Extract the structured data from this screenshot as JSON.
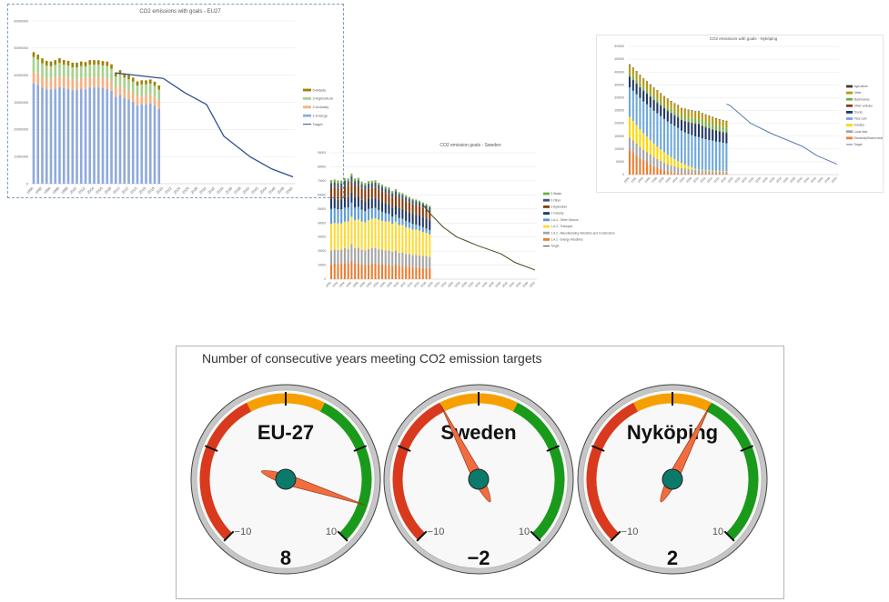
{
  "chart_data": [
    {
      "type": "bar",
      "stacked": true,
      "title": "CO2 emissions with goals - EU27",
      "xlabel": "",
      "ylabel": "",
      "x_range": [
        1990,
        2050
      ],
      "bar_years_start": 1990,
      "ylim": [
        0,
        6000000
      ],
      "ytick_step": 1000000,
      "xtick_step": 2,
      "grid": true,
      "legend": "right",
      "series": [
        {
          "name": "1-Energy",
          "color": "#8faadc",
          "values": [
            3700000,
            3650000,
            3550000,
            3480000,
            3470000,
            3500000,
            3560000,
            3520000,
            3500000,
            3450000,
            3450000,
            3500000,
            3480000,
            3550000,
            3550000,
            3550000,
            3520000,
            3500000,
            3420000,
            3200000,
            3270000,
            3150000,
            3100000,
            3020000,
            2880000,
            2920000,
            2920000,
            2950000,
            2880000,
            2750000
          ]
        },
        {
          "name": "2-Industry",
          "color": "#f4b183",
          "values": [
            420000,
            410000,
            400000,
            390000,
            390000,
            400000,
            400000,
            400000,
            400000,
            390000,
            390000,
            390000,
            390000,
            390000,
            390000,
            390000,
            390000,
            390000,
            380000,
            330000,
            340000,
            340000,
            330000,
            330000,
            330000,
            330000,
            330000,
            330000,
            330000,
            320000
          ]
        },
        {
          "name": "3-Agriculture",
          "color": "#a9d18e",
          "values": [
            550000,
            520000,
            490000,
            480000,
            470000,
            480000,
            490000,
            470000,
            460000,
            450000,
            450000,
            450000,
            450000,
            450000,
            450000,
            450000,
            450000,
            450000,
            440000,
            420000,
            420000,
            420000,
            420000,
            410000,
            410000,
            410000,
            410000,
            410000,
            400000,
            400000
          ]
        },
        {
          "name": "5-Waste",
          "color": "#a08000",
          "values": [
            180000,
            180000,
            180000,
            180000,
            175000,
            175000,
            175000,
            170000,
            170000,
            170000,
            170000,
            165000,
            165000,
            165000,
            165000,
            160000,
            160000,
            160000,
            160000,
            155000,
            155000,
            155000,
            155000,
            150000,
            150000,
            150000,
            150000,
            150000,
            150000,
            150000
          ]
        }
      ],
      "target": {
        "name": "Target",
        "color": "#2f4f8f",
        "points": [
          [
            2009,
            4080000
          ],
          [
            2020,
            3880000
          ],
          [
            2025,
            3350000
          ],
          [
            2030,
            2920000
          ],
          [
            2034,
            1750000
          ],
          [
            2040,
            1000000
          ],
          [
            2045,
            550000
          ],
          [
            2050,
            250000
          ]
        ]
      }
    },
    {
      "type": "bar",
      "stacked": true,
      "title": "CO2 emission goals - Sweden",
      "xlabel": "",
      "ylabel": "",
      "x_range": [
        1990,
        2050
      ],
      "bar_years_start": 1990,
      "ylim": [
        0,
        90000
      ],
      "ytick_step": 10000,
      "xtick_step": 2,
      "grid": true,
      "legend": "right",
      "series": [
        {
          "name": "1.A.1 - Energy Industries",
          "color": "#ed7d31",
          "values": [
            10500,
            11000,
            10800,
            11000,
            11500,
            11000,
            13000,
            11000,
            11500,
            10500,
            10000,
            10500,
            11000,
            11500,
            10500,
            10500,
            10000,
            10000,
            9500,
            10500,
            9500,
            9500,
            9000,
            9000,
            8500,
            8500,
            8500,
            8000,
            8000,
            7800
          ]
        },
        {
          "name": "1.A.2 - Manufacturing Industries and Construction",
          "color": "#a5a5a5",
          "values": [
            10000,
            10000,
            10000,
            10200,
            10500,
            10500,
            12000,
            11000,
            11000,
            10500,
            10500,
            11000,
            11000,
            10800,
            10800,
            10500,
            10500,
            10500,
            10000,
            10000,
            9000,
            9500,
            9000,
            9000,
            8800,
            8800,
            8500,
            8500,
            8500,
            8200
          ]
        },
        {
          "name": "1.A.3 - Transport",
          "color": "#ffd932",
          "values": [
            19000,
            19000,
            19000,
            18500,
            19000,
            19500,
            19500,
            20000,
            20000,
            20000,
            20000,
            20500,
            21000,
            21000,
            21000,
            20500,
            20500,
            20500,
            20000,
            20500,
            20000,
            19500,
            19000,
            18500,
            18000,
            18000,
            17500,
            17000,
            16500,
            16000
          ]
        },
        {
          "name": "1.A.4 - Other Sectors",
          "color": "#5b9bd5",
          "values": [
            10500,
            10500,
            10000,
            10000,
            10000,
            10000,
            10000,
            9000,
            9000,
            8500,
            8000,
            8000,
            7500,
            7500,
            7000,
            6500,
            6000,
            5500,
            5000,
            5000,
            5000,
            4500,
            4500,
            4000,
            4000,
            3500,
            3500,
            3500,
            3000,
            3000
          ]
        },
        {
          "name": "2 Industry",
          "color": "#1f3864",
          "values": [
            7000,
            7000,
            7000,
            7000,
            7500,
            7500,
            7500,
            7500,
            7500,
            7000,
            7000,
            7000,
            7000,
            7000,
            7000,
            7000,
            7000,
            7000,
            6500,
            6500,
            7000,
            7000,
            7000,
            7000,
            7000,
            7000,
            7000,
            7000,
            7000,
            6800
          ]
        },
        {
          "name": "3 Agriculture",
          "color": "#843c0c",
          "values": [
            8000,
            8000,
            8000,
            8000,
            8000,
            7800,
            7800,
            7800,
            7800,
            7700,
            7700,
            7600,
            7500,
            7500,
            7400,
            7400,
            7300,
            7200,
            7200,
            7100,
            7100,
            7000,
            7000,
            7000,
            7000,
            7000,
            7000,
            6900,
            6900,
            6800
          ]
        },
        {
          "name": "6 Other",
          "color": "#44546a",
          "values": [
            3500,
            3500,
            3500,
            3500,
            3500,
            3500,
            3500,
            3500,
            3500,
            3500,
            3500,
            3400,
            3400,
            3400,
            3300,
            3300,
            3200,
            3200,
            3100,
            3100,
            3000,
            3000,
            3000,
            2900,
            2900,
            2800,
            2800,
            2800,
            2700,
            2700
          ]
        },
        {
          "name": "5 Waste",
          "color": "#70ad47",
          "values": [
            2000,
            2000,
            2000,
            2000,
            2000,
            2000,
            1900,
            1900,
            1900,
            1800,
            1800,
            1800,
            1700,
            1700,
            1600,
            1600,
            1500,
            1500,
            1400,
            1400,
            1300,
            1300,
            1200,
            1200,
            1100,
            1100,
            1100,
            1000,
            1000,
            1000
          ]
        }
      ],
      "target": {
        "name": "Target",
        "color": "#3b4a1c",
        "points": [
          [
            2017,
            53000
          ],
          [
            2019,
            47000
          ],
          [
            2023,
            37000
          ],
          [
            2027,
            30000
          ],
          [
            2033,
            24000
          ],
          [
            2040,
            18000
          ],
          [
            2044,
            12000
          ],
          [
            2050,
            6500
          ]
        ]
      }
    },
    {
      "type": "bar",
      "stacked": true,
      "title": "CO2 emissions with goals - Nyköping",
      "xlabel": "",
      "ylabel": "",
      "x_range": [
        1990,
        2050
      ],
      "bar_years_start": 1990,
      "ylim": [
        0,
        500000
      ],
      "ytick_step": 50000,
      "xtick_step": 2,
      "grid": true,
      "legend": "right",
      "series": [
        {
          "name": "Electricity/District heat",
          "color": "#ed7d31",
          "values": [
            95000,
            85000,
            75000,
            65000,
            55000,
            48000,
            40000,
            33000,
            27000,
            22000,
            17000,
            13000,
            10000,
            8000,
            6000,
            5000,
            5000,
            5000,
            5000,
            5000,
            5000,
            5000,
            5000,
            5000,
            5000,
            5000,
            5000,
            5000,
            5000
          ]
        },
        {
          "name": "Local heat",
          "color": "#a5a5a5",
          "values": [
            50000,
            48000,
            46000,
            44000,
            42000,
            40000,
            38000,
            36000,
            34000,
            32000,
            30000,
            28000,
            26000,
            24000,
            22000,
            20000,
            18000,
            16000,
            15000,
            14000,
            13000,
            12000,
            11000,
            10000,
            9000,
            8000,
            8000,
            7000,
            7000
          ]
        },
        {
          "name": "Industry",
          "color": "#ffd700",
          "values": [
            80000,
            76000,
            72000,
            68000,
            64000,
            60000,
            56000,
            52000,
            48000,
            44000,
            40000,
            36000,
            32000,
            28000,
            24000,
            20000,
            16000,
            12000,
            8000,
            4000,
            2000,
            2000,
            2000,
            2000,
            2000,
            2000,
            2000,
            2000,
            2000
          ]
        },
        {
          "name": "Pass cars",
          "color": "#6fa8dc",
          "values": [
            115000,
            118000,
            120000,
            122000,
            124000,
            126000,
            128000,
            128000,
            130000,
            130000,
            130000,
            130000,
            130000,
            130000,
            130000,
            126000,
            126000,
            126000,
            126000,
            126000,
            126000,
            122000,
            120000,
            118000,
            116000,
            114000,
            112000,
            110000,
            108000
          ]
        },
        {
          "name": "Trucks",
          "color": "#203864",
          "values": [
            40000,
            40000,
            40000,
            40000,
            40000,
            40000,
            40000,
            40000,
            40000,
            40000,
            40000,
            40000,
            40000,
            40000,
            40000,
            40000,
            42000,
            44000,
            46000,
            48000,
            50000,
            48000,
            46000,
            44000,
            42000,
            42000,
            40000,
            40000,
            40000
          ]
        },
        {
          "name": "Other vehicles",
          "color": "#843c0c",
          "values": [
            3000,
            3000,
            3000,
            3000,
            3000,
            3000,
            3000,
            3000,
            3000,
            3000,
            3000,
            3000,
            3000,
            3000,
            3000,
            3000,
            3000,
            3000,
            3000,
            3000,
            3000,
            3000,
            3000,
            3000,
            3000,
            3000,
            3000,
            3000,
            3000
          ]
        },
        {
          "name": "Machineries",
          "color": "#70ad47",
          "values": [
            15000,
            15000,
            15000,
            15000,
            15000,
            15000,
            15000,
            15000,
            15000,
            15000,
            15000,
            15000,
            15000,
            15000,
            16000,
            16000,
            17000,
            17000,
            18000,
            18000,
            19000,
            19000,
            20000,
            20000,
            20000,
            19000,
            19000,
            18000,
            18000
          ]
        },
        {
          "name": "Other",
          "color": "#b8960b",
          "values": [
            30000,
            30000,
            30000,
            30000,
            30000,
            30000,
            30000,
            30000,
            30000,
            29000,
            29000,
            29000,
            29000,
            28000,
            28000,
            28000,
            28000,
            28000,
            28000,
            27000,
            27000,
            27000,
            26000,
            26000,
            26000,
            25000,
            25000,
            25000,
            25000
          ]
        },
        {
          "name": "Agriculture",
          "color": "#3a3a3a",
          "values": [
            2000,
            2000,
            2000,
            2000,
            2000,
            2000,
            2000,
            2000,
            2000,
            2000,
            2000,
            2000,
            2000,
            2000,
            2000,
            2000,
            2000,
            2000,
            2000,
            2000,
            2000,
            2000,
            2000,
            2000,
            2000,
            2000,
            2000,
            2000,
            2000
          ]
        }
      ],
      "target": {
        "name": "Target",
        "color": "#5a7ab0",
        "points": [
          [
            2018,
            275000
          ],
          [
            2019,
            270000
          ],
          [
            2025,
            200000
          ],
          [
            2031,
            160000
          ],
          [
            2040,
            110000
          ],
          [
            2044,
            75000
          ],
          [
            2050,
            40000
          ]
        ]
      }
    }
  ],
  "gauges": {
    "title": "Number of consecutive years meeting CO2 emission targets",
    "min": -10,
    "max": 10,
    "tick_values": [
      -10,
      -5,
      0,
      5,
      10
    ],
    "tick_labels": [
      "−10",
      "10"
    ],
    "bands": [
      {
        "from": -10,
        "to": -2,
        "color": "#d9391c"
      },
      {
        "from": -2,
        "to": 2,
        "color": "#f5a000"
      },
      {
        "from": 2,
        "to": 10,
        "color": "#1a9a1a"
      }
    ],
    "needle_color": "#f26c3f",
    "hub_color": "#0b7a6a",
    "items": [
      {
        "name": "EU-27",
        "value": 8,
        "value_label": "8"
      },
      {
        "name": "Sweden",
        "value": -2,
        "value_label": "−2"
      },
      {
        "name": "Nyköping",
        "value": 2,
        "value_label": "2"
      }
    ]
  }
}
